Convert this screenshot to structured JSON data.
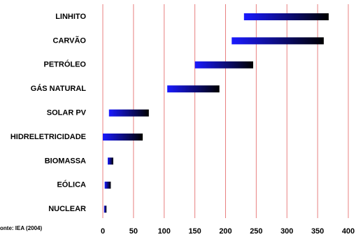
{
  "chart_data": {
    "type": "range-bar",
    "categories": [
      "LINHITO",
      "CARVÃO",
      "PETRÓLEO",
      "GÁS NATURAL",
      "SOLAR PV",
      "HIDRELETRICIDADE",
      "BIOMASSA",
      "EÓLICA",
      "NUCLEAR"
    ],
    "low": [
      230,
      210,
      150,
      105,
      10,
      0,
      8,
      3,
      2
    ],
    "high": [
      368,
      360,
      245,
      190,
      75,
      65,
      17,
      13,
      6
    ],
    "color_start": "#1a1aff",
    "color_end": "#000000",
    "grid_color": "#e88080",
    "xlim": [
      0,
      400
    ],
    "xticks": [
      0,
      50,
      100,
      150,
      200,
      250,
      300,
      350,
      400
    ],
    "grid": true,
    "source": "onte: IEA (2004)"
  }
}
